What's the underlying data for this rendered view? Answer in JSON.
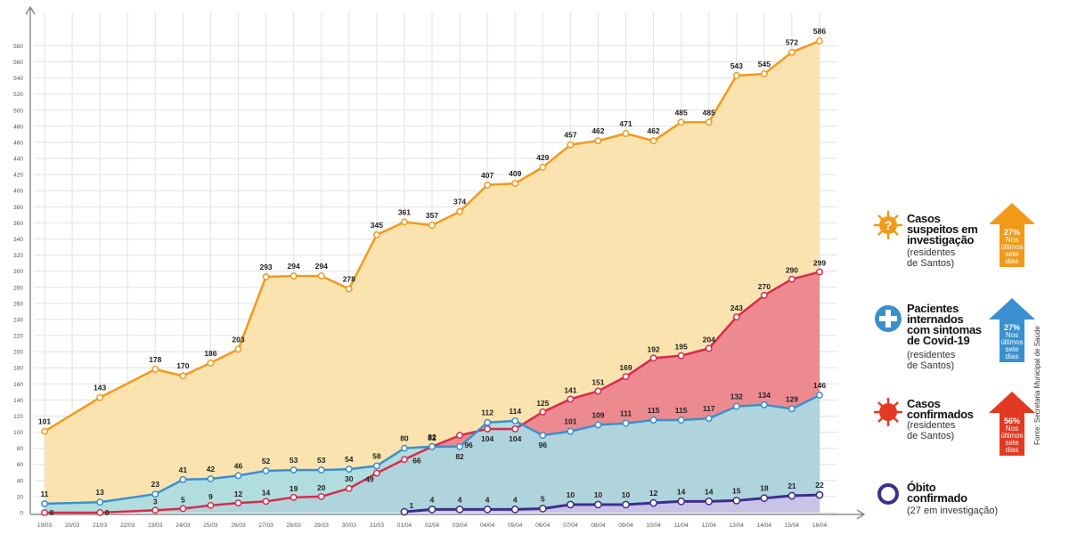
{
  "chart_data": {
    "type": "area",
    "categories": [
      "19/03",
      "20/03",
      "21/03",
      "22/03",
      "23/03",
      "24/03",
      "25/03",
      "26/03",
      "27/03",
      "28/03",
      "29/03",
      "30/03",
      "31/03",
      "01/04",
      "02/04",
      "03/04",
      "04/04",
      "05/04",
      "06/04",
      "07/04",
      "08/04",
      "09/04",
      "10/04",
      "11/04",
      "12/04",
      "13/04",
      "14/04",
      "15/04",
      "16/04"
    ],
    "yticks": [
      0,
      20,
      40,
      60,
      80,
      100,
      120,
      140,
      160,
      180,
      200,
      220,
      240,
      260,
      280,
      300,
      320,
      340,
      360,
      380,
      400,
      420,
      440,
      460,
      480,
      500,
      520,
      540,
      560,
      580
    ],
    "ylim": [
      0,
      600
    ],
    "grid": true,
    "series": [
      {
        "name": "Casos suspeitos em investigação",
        "color": "#f29a1a",
        "fill": "#fbe3b0",
        "x": [
          "19/03",
          "21/03",
          "23/03",
          "24/03",
          "25/03",
          "26/03",
          "27/03",
          "28/03",
          "29/03",
          "30/03",
          "31/03",
          "01/04",
          "02/04",
          "03/04",
          "04/04",
          "05/04",
          "06/04",
          "07/04",
          "08/04",
          "09/04",
          "10/04",
          "11/04",
          "12/04",
          "13/04",
          "14/04",
          "15/04",
          "16/04"
        ],
        "values": [
          101,
          143,
          178,
          170,
          186,
          203,
          293,
          294,
          294,
          278,
          345,
          361,
          357,
          374,
          407,
          409,
          429,
          457,
          462,
          471,
          462,
          485,
          485,
          543,
          545,
          572,
          586
        ]
      },
      {
        "name": "Casos confirmados",
        "color": "#d72c4d",
        "fill": "#ec8a8f",
        "x": [
          "19/03",
          "21/03",
          "23/03",
          "24/03",
          "25/03",
          "26/03",
          "27/03",
          "28/03",
          "29/03",
          "30/03",
          "31/03",
          "01/04",
          "02/04",
          "03/04",
          "04/04",
          "05/04",
          "06/04",
          "07/04",
          "08/04",
          "09/04",
          "10/04",
          "11/04",
          "12/04",
          "13/04",
          "14/04",
          "15/04",
          "16/04"
        ],
        "values": [
          0,
          0,
          3,
          5,
          9,
          12,
          14,
          19,
          20,
          30,
          49,
          66,
          82,
          96,
          104,
          104,
          125,
          141,
          151,
          169,
          192,
          195,
          204,
          243,
          270,
          290,
          299
        ]
      },
      {
        "name": "Pacientes internados com sintomas de Covid-19",
        "color": "#3a8fce",
        "fill": "#a8dce3",
        "x": [
          "19/03",
          "21/03",
          "23/03",
          "24/03",
          "25/03",
          "26/03",
          "27/03",
          "28/03",
          "29/03",
          "30/03",
          "31/03",
          "01/04",
          "02/04",
          "03/04",
          "04/04",
          "05/04",
          "06/04",
          "07/04",
          "08/04",
          "09/04",
          "10/04",
          "11/04",
          "12/04",
          "13/04",
          "14/04",
          "15/04",
          "16/04"
        ],
        "values": [
          11,
          13,
          23,
          41,
          42,
          46,
          52,
          53,
          53,
          54,
          58,
          80,
          82,
          82,
          112,
          114,
          96,
          101,
          109,
          111,
          115,
          115,
          117,
          132,
          134,
          129,
          146
        ]
      },
      {
        "name": "Óbito confirmado",
        "color": "#3c2f8f",
        "fill": "#c9c4e6",
        "x": [
          "01/04",
          "02/04",
          "03/04",
          "04/04",
          "05/04",
          "06/04",
          "07/04",
          "08/04",
          "09/04",
          "10/04",
          "11/04",
          "12/04",
          "13/04",
          "14/04",
          "15/04",
          "16/04"
        ],
        "values": [
          1,
          4,
          4,
          4,
          4,
          5,
          10,
          10,
          10,
          12,
          14,
          14,
          15,
          18,
          21,
          22
        ]
      }
    ]
  },
  "legend": {
    "suspeitos": {
      "title": "Casos\nsuspeitos em\ninvestigação",
      "sub": "(residentes\nde Santos)",
      "pct": "27%",
      "note": "Nos\núltimos\nsete\ndias",
      "color": "#f29a1a"
    },
    "internados": {
      "title": "Pacientes\ninternados\ncom sintomas\nde Covid-19",
      "sub": "(residentes\nde Santos)",
      "pct": "27%",
      "note": "Nos\núltimos\nsete\ndias",
      "color": "#3a8fce"
    },
    "confirmados": {
      "title": "Casos\nconfirmados",
      "sub": "(residentes\nde Santos)",
      "pct": "56%",
      "note": "Nos\núltimos\nsete\ndias",
      "color": "#e23a22"
    },
    "obito": {
      "title": "Óbito\nconfirmado",
      "sub": "(27 em investigação)",
      "color": "#3c2f8f"
    }
  },
  "source": "Fonte: Secretaria Municipal de Saúde",
  "icons": {
    "suspeitos": "question-virus-icon",
    "internados": "plus-cross-icon",
    "confirmados": "virus-icon",
    "obito": "ring-icon"
  }
}
